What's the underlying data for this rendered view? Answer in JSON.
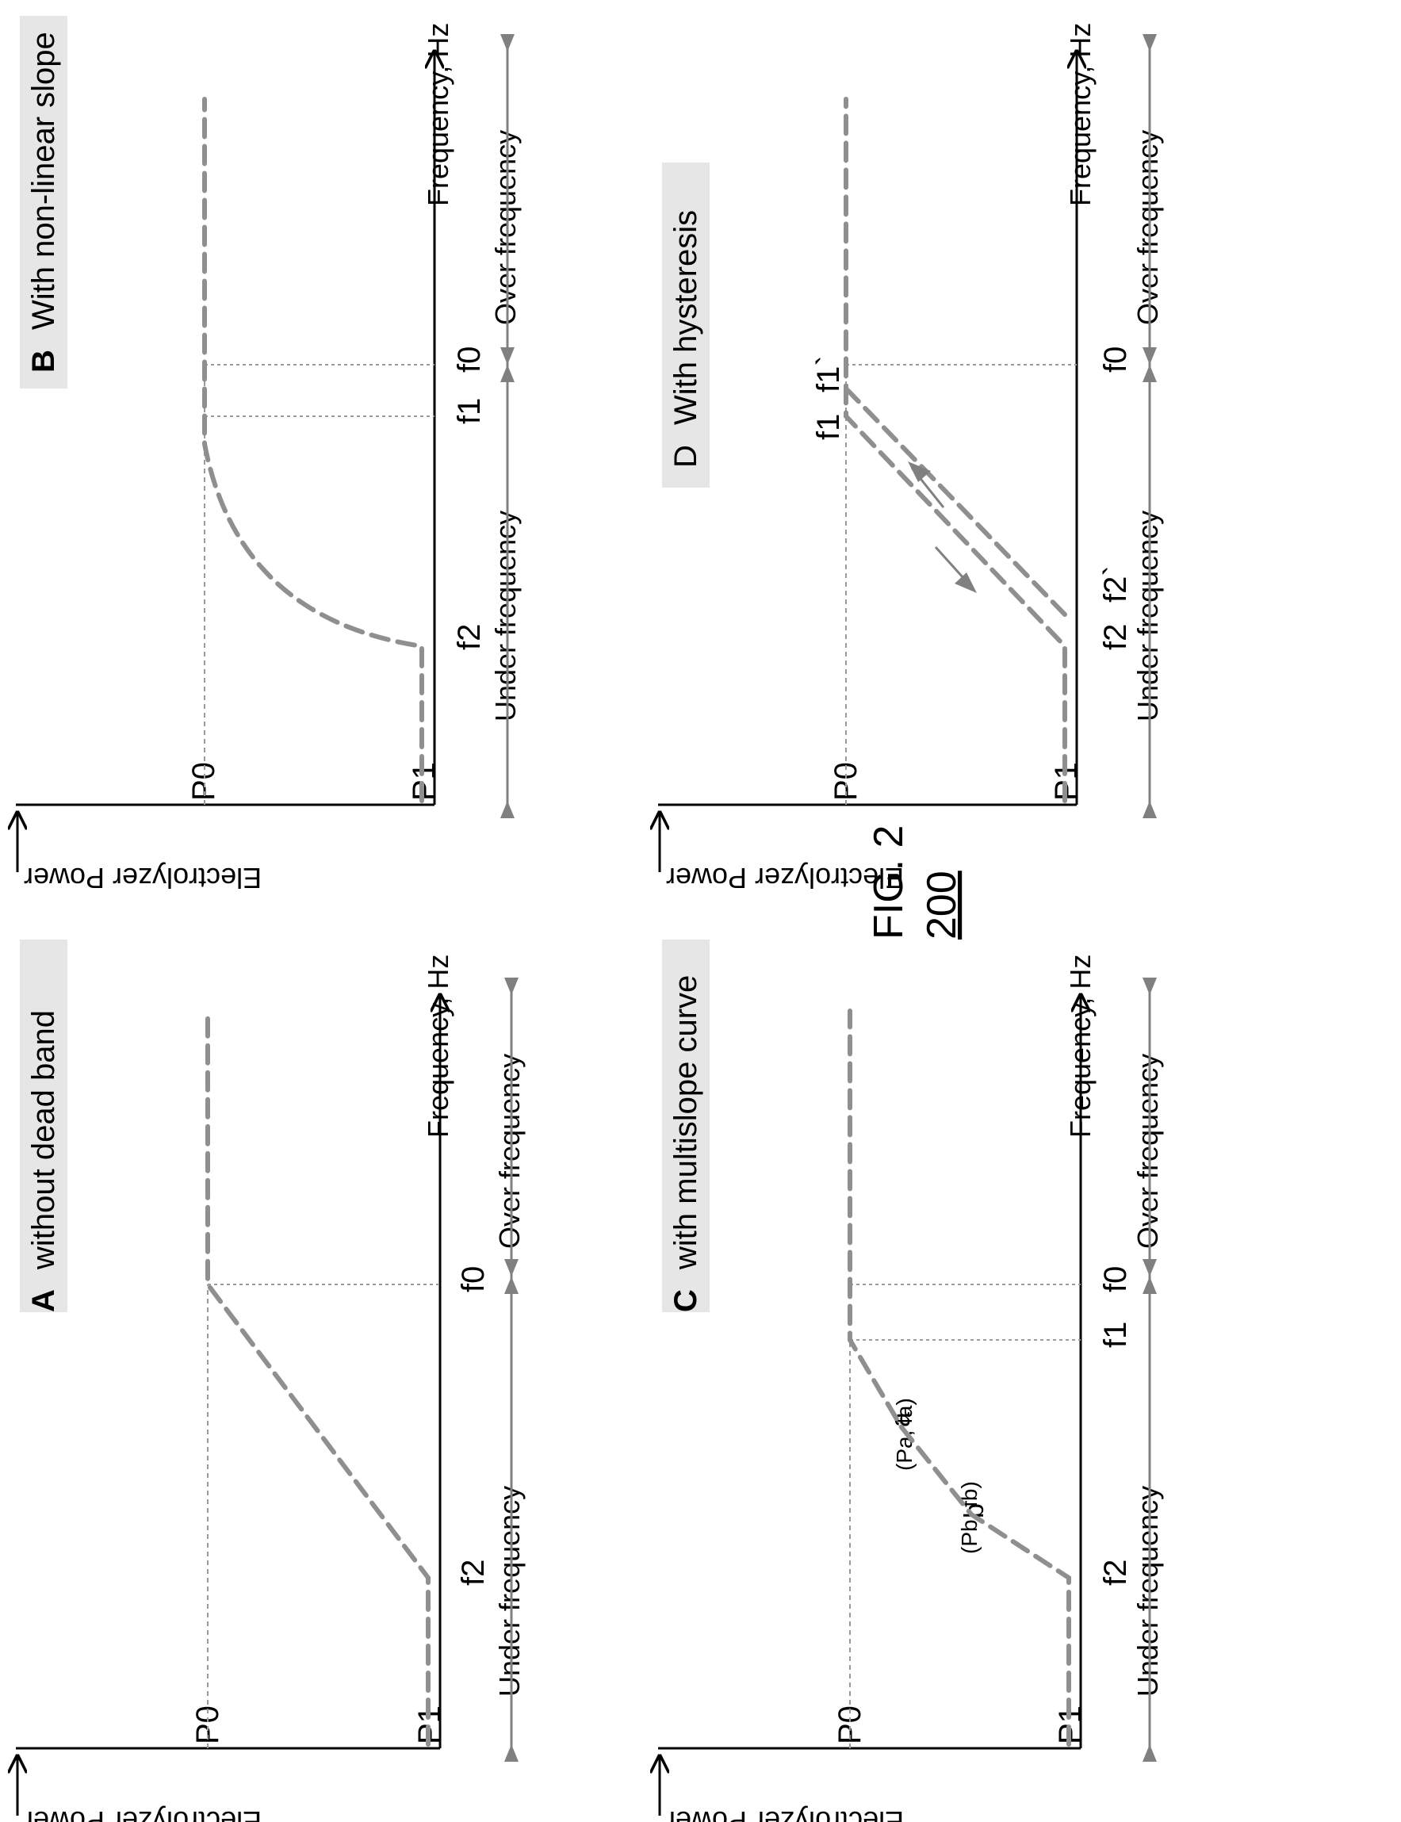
{
  "figure": {
    "caption": "FIG. 2",
    "number": "200"
  },
  "panels": [
    {
      "id": "A",
      "letter": "A",
      "title": "without dead band",
      "y_label": "Electrolyzer Power",
      "x_label": "Frequency, Hz",
      "y_ticks": [
        "P0",
        "P1"
      ],
      "x_ticks": [
        "f2",
        "f0"
      ],
      "region_under": "Under frequency",
      "region_over": "Over frequency",
      "points": []
    },
    {
      "id": "B",
      "letter": "B",
      "title": "With non-linear slope",
      "y_label": "Electrolyzer Power",
      "x_label": "Frequency, Hz",
      "y_ticks": [
        "P0",
        "P1"
      ],
      "x_ticks": [
        "f2",
        "f1",
        "f0"
      ],
      "region_under": "Under frequency",
      "region_over": "Over frequency",
      "points": []
    },
    {
      "id": "C",
      "letter": "C",
      "title": "with multislope curve",
      "y_label": "Electrolyzer Power",
      "x_label": "Frequency, Hz",
      "y_ticks": [
        "P0",
        "P1"
      ],
      "x_ticks": [
        "f2",
        "f1",
        "f0"
      ],
      "region_under": "Under frequency",
      "region_over": "Over frequency",
      "points": [
        {
          "label": "a",
          "coord": "(Pa, fa)"
        },
        {
          "label": "b",
          "coord": "(Pb, fb)"
        }
      ]
    },
    {
      "id": "D",
      "letter": "D",
      "title": "With hysteresis",
      "y_label": "Electrolyzer Power",
      "x_label": "Frequency, Hz",
      "y_ticks": [
        "P0",
        "P1"
      ],
      "x_ticks": [
        "f2",
        "f2`",
        "f1",
        "f1`",
        "f0"
      ],
      "region_under": "Under frequency",
      "region_over": "Over frequency",
      "points": []
    }
  ]
}
